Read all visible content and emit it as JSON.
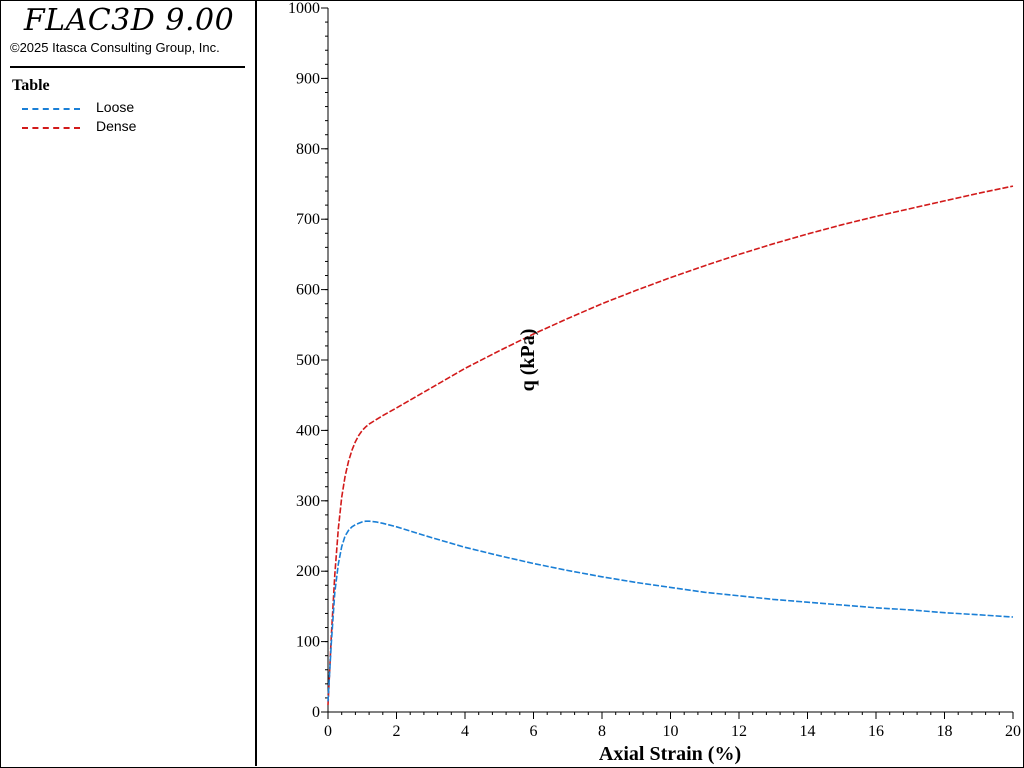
{
  "header": {
    "app_title": "FLAC3D 9.00",
    "copyright": "©2025 Itasca Consulting Group, Inc."
  },
  "legend": {
    "heading": "Table",
    "items": [
      {
        "label": "Loose",
        "color": "#1a7fd6",
        "style": "dashed"
      },
      {
        "label": "Dense",
        "color": "#d21a1a",
        "style": "dashed"
      }
    ]
  },
  "chart_data": {
    "type": "line",
    "xlabel": "Axial Strain (%)",
    "ylabel": "q (kPa)",
    "xlim": [
      0,
      20
    ],
    "ylim": [
      0,
      1000
    ],
    "x_ticks": [
      0,
      2,
      4,
      6,
      8,
      10,
      12,
      14,
      16,
      18,
      20
    ],
    "y_ticks": [
      0,
      100,
      200,
      300,
      400,
      500,
      600,
      700,
      800,
      900,
      1000
    ],
    "x_tick_labels": [
      "0",
      "2",
      "4",
      "6",
      "8",
      "10",
      "12",
      "14",
      "16",
      "18",
      "20"
    ],
    "y_tick_labels": [
      "0",
      "100",
      "200",
      "300",
      "400",
      "500",
      "600",
      "700",
      "800",
      "900",
      "1000"
    ],
    "x_minor_step": 0.4,
    "y_minor_step": 20,
    "grid": false,
    "legend_position": "left-panel",
    "series": [
      {
        "name": "Loose",
        "color": "#1a7fd6",
        "x": [
          0,
          0.1,
          0.2,
          0.3,
          0.4,
          0.5,
          0.6,
          0.7,
          0.8,
          0.9,
          1.0,
          1.1,
          1.2,
          1.4,
          1.6,
          2,
          3,
          4,
          5,
          6,
          7,
          8,
          9,
          10,
          11,
          12,
          13,
          14,
          15,
          16,
          17,
          18,
          19,
          20
        ],
        "y": [
          15,
          100,
          170,
          210,
          235,
          250,
          258,
          263,
          266,
          268,
          270,
          271,
          271,
          270,
          268,
          263,
          248,
          234,
          222,
          211,
          201,
          192,
          184,
          177,
          170,
          165,
          160,
          156,
          152,
          148,
          145,
          141,
          138,
          135
        ]
      },
      {
        "name": "Dense",
        "color": "#d21a1a",
        "x": [
          0,
          0.1,
          0.2,
          0.3,
          0.4,
          0.5,
          0.6,
          0.7,
          0.8,
          0.9,
          1.0,
          1.1,
          1.2,
          1.4,
          1.6,
          2,
          3,
          4,
          5,
          6,
          7,
          8,
          9,
          10,
          11,
          12,
          13,
          14,
          15,
          16,
          17,
          18,
          19,
          20
        ],
        "y": [
          10,
          110,
          195,
          260,
          305,
          335,
          356,
          372,
          384,
          393,
          400,
          405,
          409,
          415,
          421,
          432,
          460,
          488,
          513,
          537,
          559,
          580,
          599,
          617,
          634,
          650,
          665,
          679,
          692,
          704,
          715,
          726,
          737,
          747
        ]
      }
    ]
  }
}
